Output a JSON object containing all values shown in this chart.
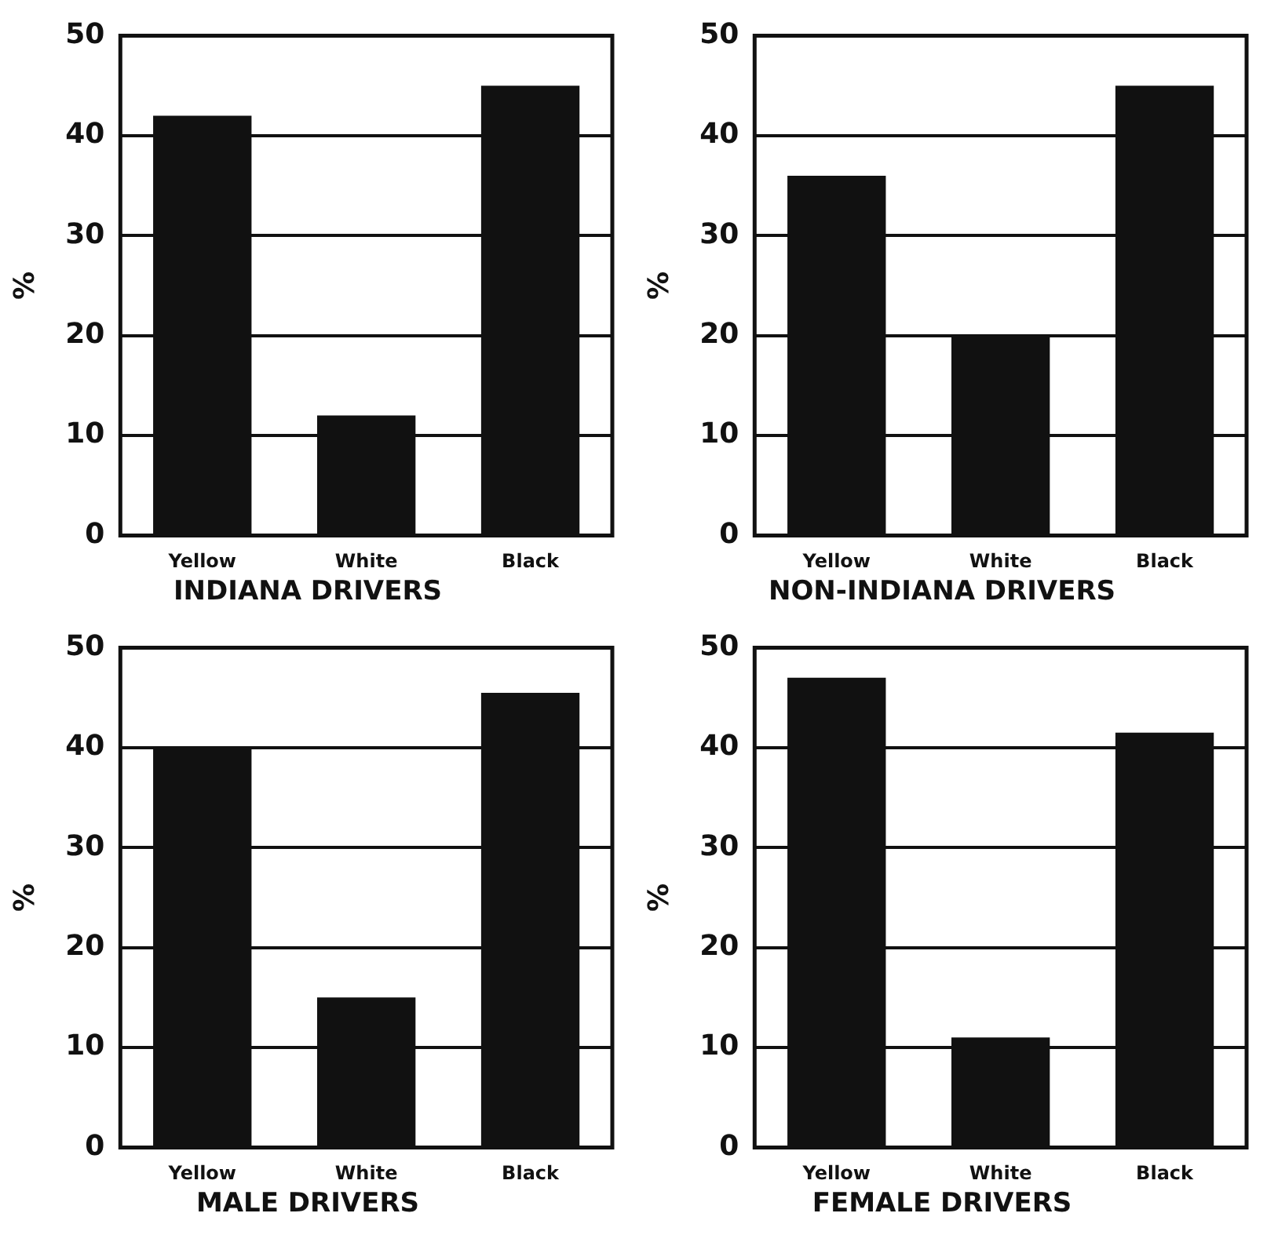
{
  "chart_data": [
    {
      "type": "bar",
      "title": "INDIANA DRIVERS",
      "ylabel": "%",
      "categories": [
        "Yellow",
        "White",
        "Black"
      ],
      "values": [
        42,
        12,
        45
      ],
      "color": "#111111",
      "ylim": [
        0,
        50
      ],
      "yticks": [
        0,
        10,
        20,
        30,
        40,
        50
      ],
      "grid": "y"
    },
    {
      "type": "bar",
      "title": "NON-INDIANA DRIVERS",
      "ylabel": "%",
      "categories": [
        "Yellow",
        "White",
        "Black"
      ],
      "values": [
        36,
        20,
        45
      ],
      "color": "#111111",
      "ylim": [
        0,
        50
      ],
      "yticks": [
        0,
        10,
        20,
        30,
        40,
        50
      ],
      "grid": "y"
    },
    {
      "type": "bar",
      "title": "MALE DRIVERS",
      "ylabel": "%",
      "categories": [
        "Yellow",
        "White",
        "Black"
      ],
      "values": [
        40,
        15,
        45.5
      ],
      "color": "#111111",
      "ylim": [
        0,
        50
      ],
      "yticks": [
        0,
        10,
        20,
        30,
        40,
        50
      ],
      "grid": "y"
    },
    {
      "type": "bar",
      "title": "FEMALE DRIVERS",
      "ylabel": "%",
      "categories": [
        "Yellow",
        "White",
        "Black"
      ],
      "values": [
        47,
        11,
        41.5
      ],
      "color": "#111111",
      "ylim": [
        0,
        50
      ],
      "yticks": [
        0,
        10,
        20,
        30,
        40,
        50
      ],
      "grid": "y"
    }
  ]
}
